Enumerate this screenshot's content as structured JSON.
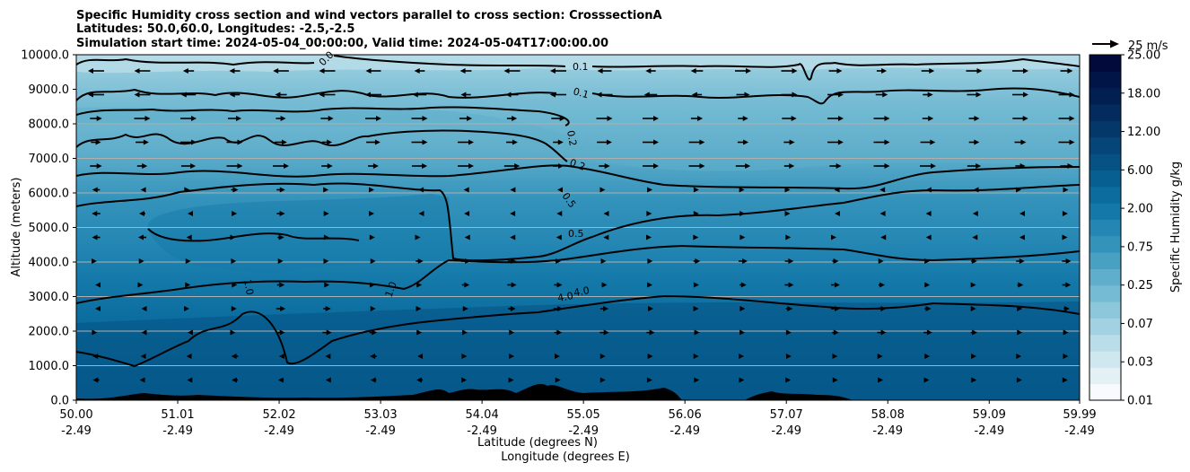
{
  "chart_data": {
    "type": "contourf",
    "title_lines": [
      "Specific Humidity cross section and wind vectors parallel to cross section: CrosssectionA",
      "Latitudes: 50.0,60.0, Longitudes: -2.5,-2.5",
      "Simulation start time: 2024-05-04_00:00:00, Valid time: 2024-05-04T17:00:00.00"
    ],
    "ylabel": "Altitude (meters)",
    "xlabel_lat": "Latitude (degrees N)",
    "xlabel_lon": "Longitude (degrees E)",
    "ylim": [
      0,
      10000
    ],
    "yticks": [
      "0.0",
      "1000.0",
      "2000.0",
      "3000.0",
      "4000.0",
      "5000.0",
      "6000.0",
      "7000.0",
      "8000.0",
      "9000.0",
      "10000.0"
    ],
    "xlim": [
      50.0,
      59.99
    ],
    "xticks": [
      {
        "value": 50.0,
        "lat": "50.00",
        "lon": "-2.49"
      },
      {
        "value": 51.01,
        "lat": "51.01",
        "lon": "-2.49"
      },
      {
        "value": 52.02,
        "lat": "52.02",
        "lon": "-2.49"
      },
      {
        "value": 53.03,
        "lat": "53.03",
        "lon": "-2.49"
      },
      {
        "value": 54.04,
        "lat": "54.04",
        "lon": "-2.49"
      },
      {
        "value": 55.05,
        "lat": "55.05",
        "lon": "-2.49"
      },
      {
        "value": 56.06,
        "lat": "56.06",
        "lon": "-2.49"
      },
      {
        "value": 57.07,
        "lat": "57.07",
        "lon": "-2.49"
      },
      {
        "value": 58.08,
        "lat": "58.08",
        "lon": "-2.49"
      },
      {
        "value": 59.09,
        "lat": "59.09",
        "lon": "-2.49"
      },
      {
        "value": 59.99,
        "lat": "59.99",
        "lon": "-2.49"
      }
    ],
    "colorbar": {
      "label": "Specific Humidity g/kg",
      "ticks": [
        "0.01",
        "0.03",
        "0.07",
        "0.25",
        "0.75",
        "2.00",
        "6.00",
        "12.00",
        "18.00",
        "25.00"
      ],
      "colors": [
        "#f7fbfd",
        "#e3f1f5",
        "#cfe7ef",
        "#b9dde9",
        "#a2d2e2",
        "#8cc7db",
        "#75bbd3",
        "#5faecb",
        "#48a0c2",
        "#3493bb",
        "#2486b3",
        "#1479a9",
        "#0b6c9e",
        "#075f91",
        "#065284",
        "#054577",
        "#04386a",
        "#032b5d",
        "#021f52",
        "#011547",
        "#010a3a"
      ]
    },
    "contour_labels": [
      "0.0",
      "0.1",
      "0.1",
      "0.2",
      "0.2",
      "0.5",
      "0.5",
      "1.0",
      "1.0",
      "4.0",
      "4.0"
    ],
    "wind_key": {
      "label": "25 m/s",
      "speed": 25
    },
    "gridlines": "horizontal"
  }
}
